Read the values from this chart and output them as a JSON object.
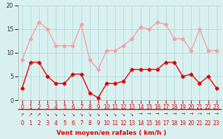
{
  "hours": [
    0,
    1,
    2,
    3,
    4,
    5,
    6,
    7,
    8,
    9,
    10,
    11,
    12,
    13,
    14,
    15,
    16,
    17,
    18,
    19,
    20,
    21,
    22,
    23
  ],
  "wind_avg": [
    2.5,
    8,
    8,
    5,
    3.5,
    3.5,
    5.5,
    5.5,
    1.5,
    0.5,
    3.5,
    3.5,
    4,
    6.5,
    6.5,
    6.5,
    6.5,
    8,
    8,
    5,
    5.5,
    3.5,
    5,
    2.5
  ],
  "wind_gust": [
    8.5,
    13,
    16.5,
    15,
    11.5,
    11.5,
    11.5,
    16,
    8.5,
    6.5,
    10.5,
    10.5,
    11.5,
    13,
    15.5,
    15,
    16.5,
    16,
    13,
    13,
    10.5,
    15,
    10.5,
    10.5
  ],
  "color_avg": "#dd0000",
  "color_gust": "#f4a0a0",
  "bg_color": "#d8f0f0",
  "grid_color": "#b8dada",
  "xlabel": "Vent moyen/en rafales ( km/h )",
  "xlabel_color": "#dd0000",
  "ylim": [
    0,
    20
  ],
  "yticks": [
    0,
    5,
    10,
    15,
    20
  ],
  "xlim": [
    -0.5,
    23.5
  ],
  "arrow_symbols": [
    "↗",
    "↗",
    "↗",
    "↘",
    "↘",
    "↘",
    "↘",
    "↘",
    "↘",
    "↘",
    "↘",
    "↘",
    "↘",
    "↘",
    "→",
    "→",
    "→",
    "→",
    "→",
    "→",
    "→",
    "→",
    "→",
    "→"
  ]
}
